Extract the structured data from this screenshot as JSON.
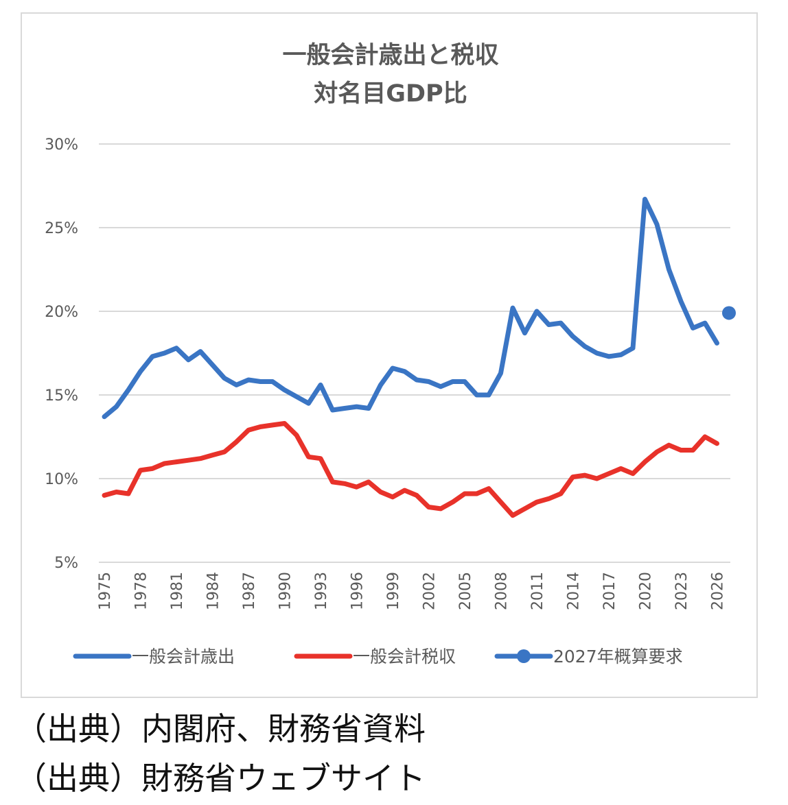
{
  "chart_data": {
    "type": "line",
    "title": [
      "一般会計歳出と税収",
      "対名目GDP比"
    ],
    "xlabel": "",
    "ylabel": "",
    "x": [
      1975,
      1976,
      1977,
      1978,
      1979,
      1980,
      1981,
      1982,
      1983,
      1984,
      1985,
      1986,
      1987,
      1988,
      1989,
      1990,
      1991,
      1992,
      1993,
      1994,
      1995,
      1996,
      1997,
      1998,
      1999,
      2000,
      2001,
      2002,
      2003,
      2004,
      2005,
      2006,
      2007,
      2008,
      2009,
      2010,
      2011,
      2012,
      2013,
      2014,
      2015,
      2016,
      2017,
      2018,
      2019,
      2020,
      2021,
      2022,
      2023,
      2024,
      2025,
      2026,
      2027
    ],
    "x_ticks": [
      "1975",
      "1978",
      "1981",
      "1984",
      "1987",
      "1990",
      "1993",
      "1996",
      "1999",
      "2002",
      "2005",
      "2008",
      "2011",
      "2014",
      "2017",
      "2020",
      "2023",
      "2026"
    ],
    "y_ticks": [
      "5%",
      "10%",
      "15%",
      "20%",
      "25%",
      "30%"
    ],
    "ylim": [
      5,
      30
    ],
    "grid": true,
    "legend_position": "bottom",
    "series": [
      {
        "name": "一般会計歳出",
        "color": "#3a75c4",
        "marker": "none",
        "values": [
          13.7,
          14.3,
          15.3,
          16.4,
          17.3,
          17.5,
          17.8,
          17.1,
          17.6,
          16.8,
          16.0,
          15.6,
          15.9,
          15.8,
          15.8,
          15.3,
          14.9,
          14.5,
          15.6,
          14.1,
          14.2,
          14.3,
          14.2,
          15.6,
          16.6,
          16.4,
          15.9,
          15.8,
          15.5,
          15.8,
          15.8,
          15.0,
          15.0,
          16.3,
          20.2,
          18.7,
          20.0,
          19.2,
          19.3,
          18.5,
          17.9,
          17.5,
          17.3,
          17.4,
          17.8,
          26.7,
          25.2,
          22.5,
          20.6,
          19.0,
          19.3,
          18.1,
          null
        ]
      },
      {
        "name": "一般会計税収",
        "color": "#e8322a",
        "marker": "none",
        "values": [
          9.0,
          9.2,
          9.1,
          10.5,
          10.6,
          10.9,
          11.0,
          11.1,
          11.2,
          11.4,
          11.6,
          12.2,
          12.9,
          13.1,
          13.2,
          13.3,
          12.6,
          11.3,
          11.2,
          9.8,
          9.7,
          9.5,
          9.8,
          9.2,
          8.9,
          9.3,
          9.0,
          8.3,
          8.2,
          8.6,
          9.1,
          9.1,
          9.4,
          8.6,
          7.8,
          8.2,
          8.6,
          8.8,
          9.1,
          10.1,
          10.2,
          10.0,
          10.3,
          10.6,
          10.3,
          11.0,
          11.6,
          12.0,
          11.7,
          11.7,
          12.5,
          12.1,
          null
        ]
      },
      {
        "name": "2027年概算要求",
        "color": "#3a75c4",
        "marker": "circle",
        "values": [
          null,
          null,
          null,
          null,
          null,
          null,
          null,
          null,
          null,
          null,
          null,
          null,
          null,
          null,
          null,
          null,
          null,
          null,
          null,
          null,
          null,
          null,
          null,
          null,
          null,
          null,
          null,
          null,
          null,
          null,
          null,
          null,
          null,
          null,
          null,
          null,
          null,
          null,
          null,
          null,
          null,
          null,
          null,
          null,
          null,
          null,
          null,
          null,
          null,
          null,
          null,
          null,
          19.9
        ]
      }
    ]
  },
  "source_lines": [
    "（出典）内閣府、財務省資料",
    "（出典）財務省ウェブサイト"
  ]
}
